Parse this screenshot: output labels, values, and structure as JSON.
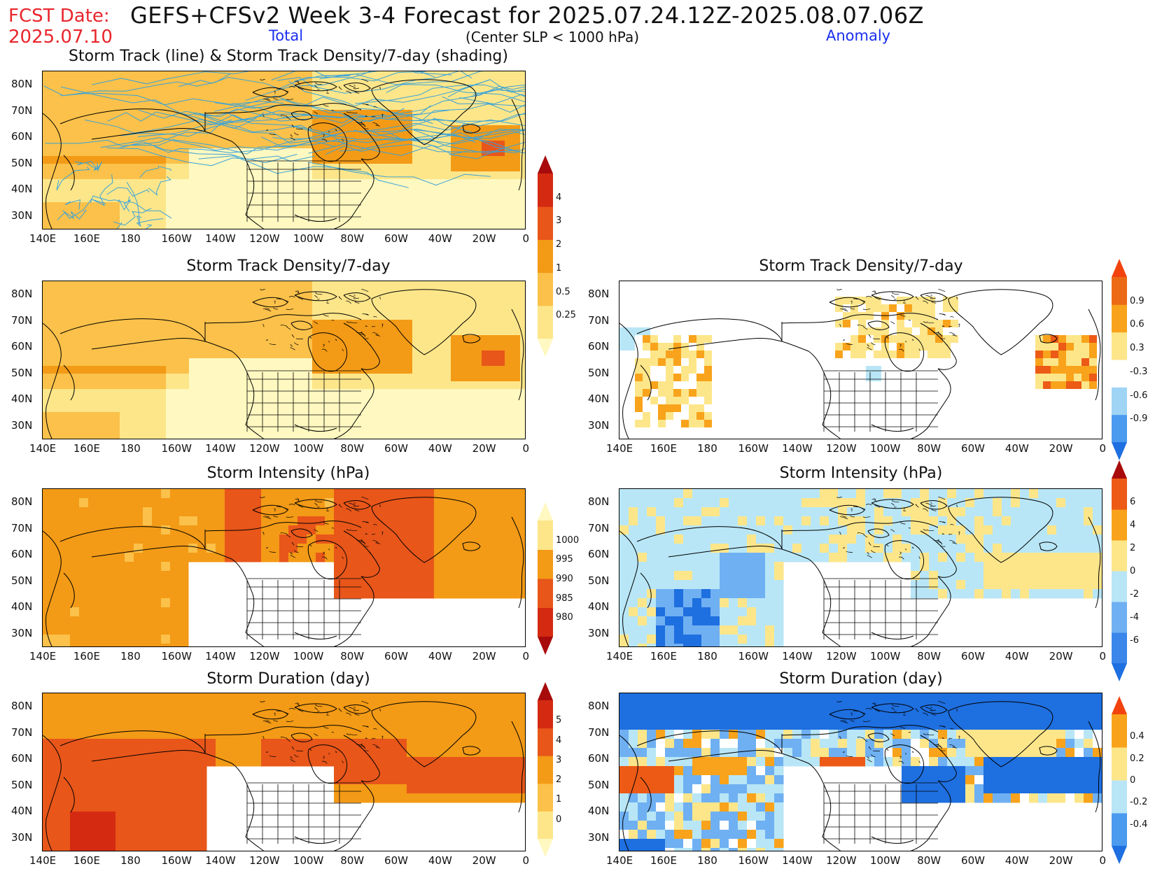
{
  "header": {
    "fcst_label": "FCST Date:",
    "fcst_date": "2025.07.10",
    "title": "GEFS+CFSv2 Week 3-4 Forecast for 2025.07.24.12Z-2025.08.07.06Z",
    "total_label": "Total",
    "criterion": "(Center SLP < 1000 hPa)",
    "anomaly_label": "Anomaly"
  },
  "axes": {
    "lat_ticks": [
      "80N",
      "70N",
      "60N",
      "50N",
      "40N",
      "30N"
    ],
    "lon_ticks": [
      "140E",
      "160E",
      "180",
      "160W",
      "140W",
      "120W",
      "100W",
      "80W",
      "60W",
      "40W",
      "20W",
      "0"
    ]
  },
  "panels": {
    "track_total": {
      "title": "Storm Track (line) & Storm Track Density/7-day (shading)"
    },
    "density_total": {
      "title": "Storm Track Density/7-day"
    },
    "density_anom": {
      "title": "Storm Track Density/7-day"
    },
    "intensity_total": {
      "title": "Storm Intensity (hPa)"
    },
    "intensity_anom": {
      "title": "Storm Intensity (hPa)"
    },
    "duration_total": {
      "title": "Storm Duration (day)"
    },
    "duration_anom": {
      "title": "Storm Duration (day)"
    }
  },
  "colorbars": {
    "density_total": {
      "labels": [
        "0.25",
        "0.5",
        "1",
        "2",
        "3",
        "4"
      ],
      "colors": [
        "#fff8c0",
        "#fde68a",
        "#fbc14a",
        "#f39a16",
        "#e8561a",
        "#d42a12",
        "#a80b0b"
      ]
    },
    "density_anom": {
      "labels": [
        "-0.9",
        "-0.6",
        "-0.3",
        "0.3",
        "0.6",
        "0.9"
      ],
      "colors": [
        "#1e6fe0",
        "#4a9af0",
        "#9fd4f5",
        "#ffffff",
        "#fde68a",
        "#f8a31b",
        "#ec6a16",
        "#f2430f"
      ]
    },
    "intensity_total": {
      "labels": [
        "980",
        "985",
        "990",
        "995",
        "1000"
      ],
      "colors": [
        "#a80b0b",
        "#d42a12",
        "#e8561a",
        "#f39a16",
        "#fde68a",
        "#fff8c0"
      ]
    },
    "intensity_anom": {
      "labels": [
        "-6",
        "-4",
        "-2",
        "0",
        "2",
        "4",
        "6"
      ],
      "colors": [
        "#1e6fe0",
        "#3a86ea",
        "#6fb0f2",
        "#b8e6f6",
        "#fde68a",
        "#f8a31b",
        "#ec5a16",
        "#a80b0b"
      ]
    },
    "duration_total": {
      "labels": [
        "0",
        "1",
        "2",
        "3",
        "4",
        "5"
      ],
      "colors": [
        "#fff8c0",
        "#fde68a",
        "#fbc14a",
        "#f39a16",
        "#e8561a",
        "#d42a12",
        "#a80b0b"
      ]
    },
    "duration_anom": {
      "labels": [
        "-0.4",
        "-0.2",
        "0",
        "0.2",
        "0.4"
      ],
      "colors": [
        "#1e6fe0",
        "#4a9af0",
        "#b8e6f6",
        "#fde68a",
        "#f8a31b",
        "#f2430f"
      ]
    }
  },
  "chart_data": [
    {
      "type": "heatmap",
      "title": "Storm Track (line) & Storm Track Density/7-day (shading)",
      "xlim": [
        "140E",
        "0"
      ],
      "ylim": [
        "25N",
        "85N"
      ],
      "colorbar_levels": [
        0.25,
        0.5,
        1,
        2,
        3,
        4
      ],
      "max_region": "southeast of Greenland (~60N, 20W)",
      "track_lines": true
    },
    {
      "type": "heatmap",
      "title": "Storm Track Density/7-day",
      "xlim": [
        "140E",
        "0"
      ],
      "ylim": [
        "25N",
        "85N"
      ],
      "colorbar_levels": [
        0.25,
        0.5,
        1,
        2,
        3,
        4
      ]
    },
    {
      "type": "heatmap",
      "title": "Storm Track Density/7-day",
      "xlim": [
        "140E",
        "0"
      ],
      "ylim": [
        "25N",
        "85N"
      ],
      "colorbar_levels": [
        -0.9,
        -0.6,
        -0.3,
        0.3,
        0.6,
        0.9
      ]
    },
    {
      "type": "heatmap",
      "title": "Storm Intensity (hPa)",
      "xlim": [
        "140E",
        "0"
      ],
      "ylim": [
        "25N",
        "85N"
      ],
      "colorbar_levels": [
        980,
        985,
        990,
        995,
        1000
      ]
    },
    {
      "type": "heatmap",
      "title": "Storm Intensity (hPa)",
      "xlim": [
        "140E",
        "0"
      ],
      "ylim": [
        "25N",
        "85N"
      ],
      "colorbar_levels": [
        -6,
        -4,
        -2,
        0,
        2,
        4,
        6
      ]
    },
    {
      "type": "heatmap",
      "title": "Storm Duration (day)",
      "xlim": [
        "140E",
        "0"
      ],
      "ylim": [
        "25N",
        "85N"
      ],
      "colorbar_levels": [
        0,
        1,
        2,
        3,
        4,
        5
      ]
    },
    {
      "type": "heatmap",
      "title": "Storm Duration (day)",
      "xlim": [
        "140E",
        "0"
      ],
      "ylim": [
        "25N",
        "85N"
      ],
      "colorbar_levels": [
        -0.4,
        -0.2,
        0,
        0.2,
        0.4
      ]
    }
  ]
}
